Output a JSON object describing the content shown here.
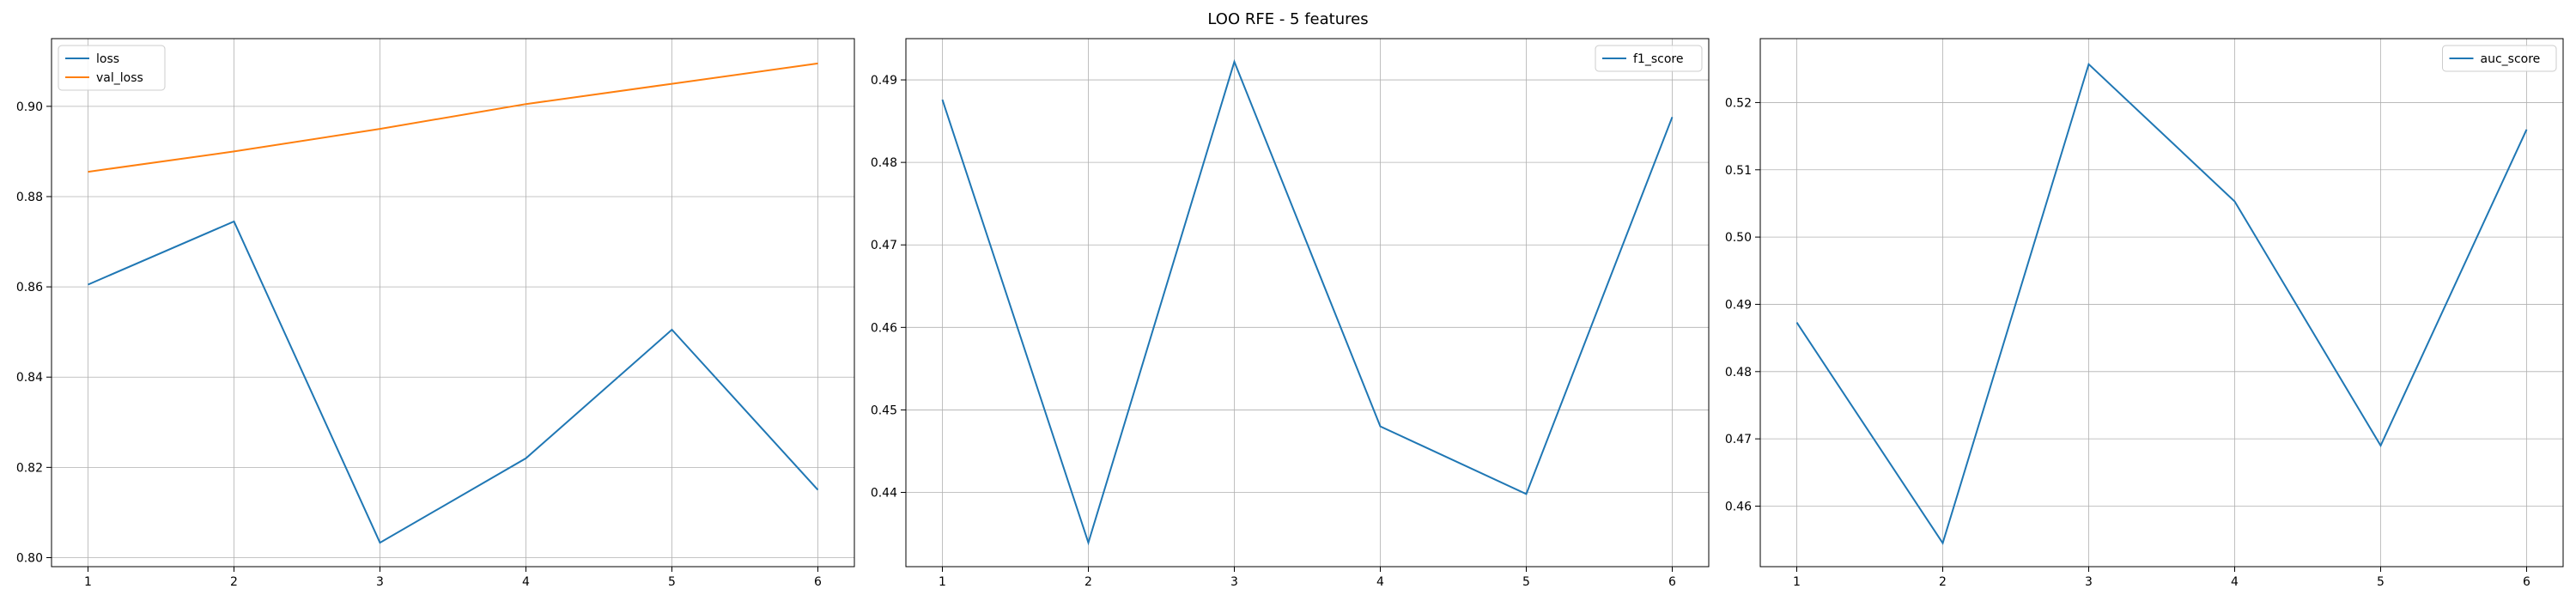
{
  "figure": {
    "title": "LOO RFE - 5 features"
  },
  "chart_data": [
    {
      "type": "line",
      "x": [
        1,
        2,
        3,
        4,
        5,
        6
      ],
      "series": [
        {
          "name": "loss",
          "color": "#1f77b4",
          "values": [
            0.8605,
            0.8745,
            0.8033,
            0.822,
            0.8505,
            0.815
          ]
        },
        {
          "name": "val_loss",
          "color": "#ff7f0e",
          "values": [
            0.8855,
            0.89,
            0.895,
            0.9005,
            0.905,
            0.9095
          ]
        }
      ],
      "xticks": [
        "1",
        "2",
        "3",
        "4",
        "5",
        "6"
      ],
      "yticks": [
        0.8,
        0.82,
        0.84,
        0.86,
        0.88,
        0.9
      ],
      "ytick_labels": [
        "0.80",
        "0.82",
        "0.84",
        "0.86",
        "0.88",
        "0.90"
      ],
      "xlim": [
        0.75,
        6.25
      ],
      "ylim": [
        0.798,
        0.915
      ],
      "grid": true,
      "legend": "upper-left"
    },
    {
      "type": "line",
      "x": [
        1,
        2,
        3,
        4,
        5,
        6
      ],
      "series": [
        {
          "name": "f1_score",
          "color": "#1f77b4",
          "values": [
            0.4876,
            0.4339,
            0.4922,
            0.448,
            0.4398,
            0.4855
          ]
        }
      ],
      "xticks": [
        "1",
        "2",
        "3",
        "4",
        "5",
        "6"
      ],
      "yticks": [
        0.44,
        0.45,
        0.46,
        0.47,
        0.48,
        0.49
      ],
      "ytick_labels": [
        "0.44",
        "0.45",
        "0.46",
        "0.47",
        "0.48",
        "0.49"
      ],
      "xlim": [
        0.75,
        6.25
      ],
      "ylim": [
        0.431,
        0.495
      ],
      "grid": true,
      "legend": "upper-right"
    },
    {
      "type": "line",
      "x": [
        1,
        2,
        3,
        4,
        5,
        6
      ],
      "series": [
        {
          "name": "auc_score",
          "color": "#1f77b4",
          "values": [
            0.4873,
            0.4545,
            0.5257,
            0.5053,
            0.469,
            0.516
          ]
        }
      ],
      "xticks": [
        "1",
        "2",
        "3",
        "4",
        "5",
        "6"
      ],
      "yticks": [
        0.46,
        0.47,
        0.48,
        0.49,
        0.5,
        0.51,
        0.52
      ],
      "ytick_labels": [
        "0.46",
        "0.47",
        "0.48",
        "0.49",
        "0.50",
        "0.51",
        "0.52"
      ],
      "xlim": [
        0.75,
        6.25
      ],
      "ylim": [
        0.451,
        0.5295
      ],
      "grid": true,
      "legend": "upper-right"
    }
  ]
}
